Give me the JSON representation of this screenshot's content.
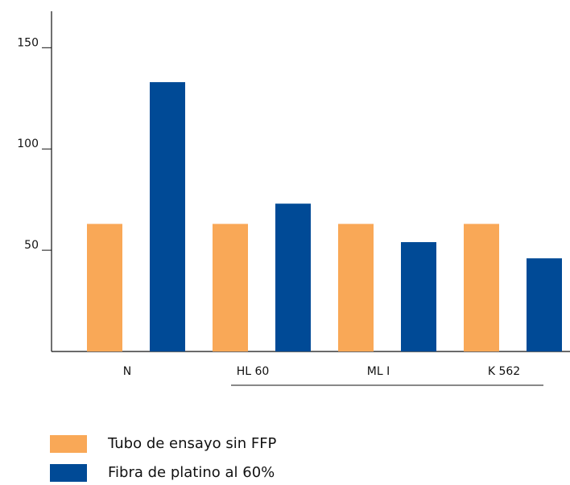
{
  "chart_data": {
    "type": "bar",
    "categories": [
      "N",
      "HL 60",
      "ML I",
      "K 562"
    ],
    "series": [
      {
        "name": "Tubo de ensayo sin FFP",
        "color": "#f9a857",
        "values": [
          63,
          63,
          63,
          63
        ]
      },
      {
        "name": "Fibra de platino al 60%",
        "color": "#004a96",
        "values": [
          133,
          73,
          54,
          46
        ]
      }
    ],
    "ylim": [
      0,
      168
    ],
    "yticks": [
      50,
      100,
      150
    ]
  }
}
